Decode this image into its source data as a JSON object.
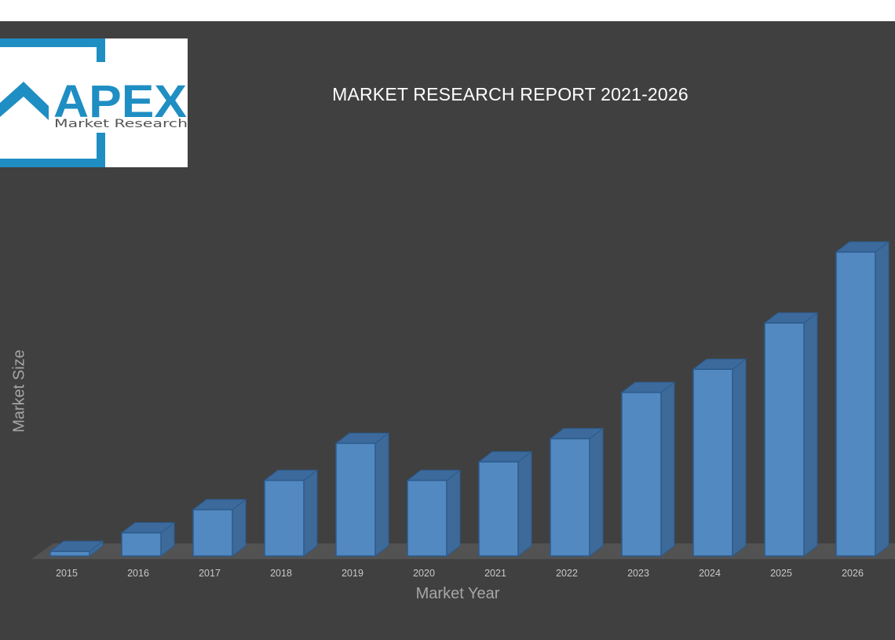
{
  "logo": {
    "brand": "APEX",
    "tagline": "Market Research",
    "colors": {
      "blue": "#1f8ec3",
      "white": "#ffffff"
    }
  },
  "chart_data": {
    "type": "bar",
    "title": "MARKET RESEARCH REPORT 2021-2026",
    "xlabel": "Market Year",
    "ylabel": "Market Size",
    "categories": [
      "2015",
      "2016",
      "2017",
      "2018",
      "2019",
      "2020",
      "2021",
      "2022",
      "2023",
      "2024",
      "2025",
      "2026"
    ],
    "values": [
      1.5,
      7.5,
      15,
      24.5,
      36.5,
      24.5,
      30.5,
      38,
      53,
      60.5,
      75.5,
      98.5
    ],
    "ylim": [
      0,
      100
    ],
    "grid": false,
    "legend": "none",
    "style": "3d-column",
    "colors": {
      "bar_front": "#5189c0",
      "bar_side": "#3d6a98",
      "bar_top": "#3c6a9c",
      "bar_edge": "#2c5a8c",
      "floor": "#525252",
      "background": "#404040",
      "tick_label": "#c8c8c8",
      "axis_label": "#a6a6a6"
    }
  }
}
